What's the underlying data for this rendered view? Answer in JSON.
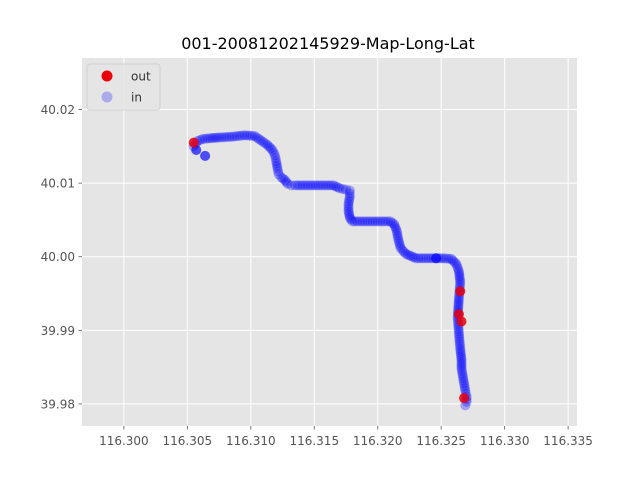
{
  "chart_data": {
    "type": "scatter",
    "title": "001-20081202145929-Map-Long-Lat",
    "xlabel": "",
    "ylabel": "",
    "xlim": [
      116.2967,
      116.3357
    ],
    "ylim": [
      39.977,
      40.027
    ],
    "x_ticks": [
      116.3,
      116.305,
      116.31,
      116.315,
      116.32,
      116.325,
      116.33,
      116.335
    ],
    "x_tick_labels": [
      "116.300",
      "116.305",
      "116.310",
      "116.315",
      "116.320",
      "116.325",
      "116.330",
      "116.335"
    ],
    "y_ticks": [
      39.98,
      39.99,
      40.0,
      40.01,
      40.02
    ],
    "y_tick_labels": [
      "39.98",
      "39.99",
      "40.00",
      "40.01",
      "40.02"
    ],
    "grid": true,
    "legend_position": "top-left",
    "series": [
      {
        "name": "out",
        "color": "#e8000b",
        "x": [
          116.3055,
          116.3265,
          116.3264,
          116.3266,
          116.3268
        ],
        "y": [
          40.0155,
          39.9953,
          39.9922,
          39.9912,
          39.9808
        ]
      },
      {
        "name": "in",
        "color": "#0000ff",
        "x": [
          116.3055,
          116.3058,
          116.3062,
          116.3068,
          116.3075,
          116.3085,
          116.3095,
          116.3103,
          116.3108,
          116.3113,
          116.3117,
          116.3119,
          116.312,
          116.3121,
          116.3122,
          116.3124,
          116.3127,
          116.3129,
          116.3132,
          116.3135,
          116.3145,
          116.3155,
          116.3165,
          116.317,
          116.3175,
          116.3178,
          116.3178,
          116.3177,
          116.3177,
          116.3178,
          116.318,
          116.319,
          116.32,
          116.321,
          116.3213,
          116.3215,
          116.3216,
          116.3218,
          116.3222,
          116.323,
          116.324,
          116.325,
          116.3258,
          116.3262,
          116.3264,
          116.3265,
          116.3264,
          116.3263,
          116.3264,
          116.3265,
          116.3266,
          116.3266,
          116.3267,
          116.3268,
          116.3269,
          116.327,
          116.327,
          116.3269
        ],
        "y": [
          40.015,
          40.0157,
          40.016,
          40.0161,
          40.0162,
          40.0163,
          40.0165,
          40.0164,
          40.0158,
          40.0152,
          40.0145,
          40.0138,
          40.013,
          40.012,
          40.0112,
          40.0108,
          40.0104,
          40.0099,
          40.0097,
          40.0097,
          40.0097,
          40.0097,
          40.0097,
          40.0093,
          40.0091,
          40.009,
          40.0082,
          40.0072,
          40.0062,
          40.0053,
          40.0048,
          40.0048,
          40.0048,
          40.0048,
          40.0044,
          40.0035,
          40.0025,
          40.0012,
          40.0004,
          39.9998,
          39.9998,
          39.9998,
          39.9997,
          39.999,
          39.998,
          39.9965,
          39.9945,
          39.9918,
          39.9895,
          39.9875,
          39.986,
          39.9848,
          39.9838,
          39.9828,
          39.9818,
          39.981,
          39.9803,
          39.9798
        ]
      }
    ],
    "extra_in_points": {
      "x": [
        116.3064,
        116.3246,
        116.3057
      ],
      "y": [
        40.0137,
        39.9998,
        40.0145
      ]
    }
  }
}
